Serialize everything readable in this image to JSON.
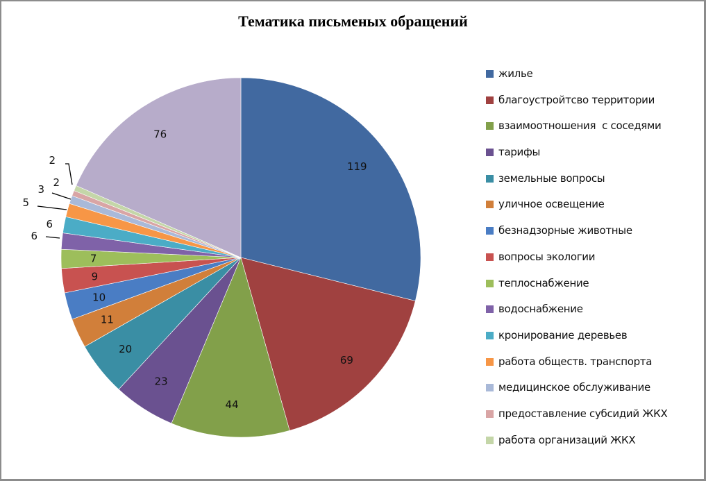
{
  "chart_data": {
    "type": "pie",
    "title": "Тематика письменых обращений",
    "xlabel": "",
    "ylabel": "",
    "legend_position": "right",
    "categories": [
      "жилье",
      "благоустройтсво территории",
      "взаимоотношения  с соседями",
      "тарифы",
      "земельные вопросы",
      "уличное освещение",
      "безнадзорные животные",
      "вопросы экологии",
      "теплоснабжение",
      "водоснабжение",
      "кронирование деревьев",
      "работа обществ. транспорта",
      "медицинское обслуживание",
      "предоставление субсидий ЖКХ",
      "работа организаций ЖКХ",
      ""
    ],
    "values": [
      119,
      69,
      44,
      23,
      20,
      11,
      10,
      9,
      7,
      6,
      6,
      5,
      3,
      2,
      2,
      76
    ],
    "colors": [
      "#4169A0",
      "#A04140",
      "#82A04A",
      "#6A5190",
      "#3A8EA4",
      "#D17F3A",
      "#4A7DC4",
      "#C85250",
      "#9DBE5B",
      "#7F62A8",
      "#4BACC6",
      "#F79646",
      "#A9B9D8",
      "#D9A5A5",
      "#C4D6A8",
      "#B7ACCA"
    ],
    "data_labels": [
      "119",
      "69",
      "44",
      "23",
      "20",
      "11",
      "10",
      "9",
      "7",
      "6",
      "6",
      "5",
      "3",
      "2",
      "2",
      "76"
    ],
    "start_angle_deg": 0,
    "direction": "clockwise"
  },
  "legend": {
    "items": [
      {
        "label": "жилье",
        "color": "#4169A0"
      },
      {
        "label": "благоустройтсво территории",
        "color": "#A04140"
      },
      {
        "label": "взаимоотношения  с соседями",
        "color": "#82A04A"
      },
      {
        "label": "тарифы",
        "color": "#6A5190"
      },
      {
        "label": "земельные вопросы",
        "color": "#3A8EA4"
      },
      {
        "label": "уличное освещение",
        "color": "#D17F3A"
      },
      {
        "label": "безнадзорные животные",
        "color": "#4A7DC4"
      },
      {
        "label": "вопросы экологии",
        "color": "#C85250"
      },
      {
        "label": "теплоснабжение",
        "color": "#9DBE5B"
      },
      {
        "label": "водоснабжение",
        "color": "#7F62A8"
      },
      {
        "label": "кронирование деревьев",
        "color": "#4BACC6"
      },
      {
        "label": "работа обществ. транспорта",
        "color": "#F79646"
      },
      {
        "label": "медицинское обслуживание",
        "color": "#A9B9D8"
      },
      {
        "label": "предоставление субсидий ЖКХ",
        "color": "#D9A5A5"
      },
      {
        "label": "работа организаций ЖКХ",
        "color": "#C4D6A8"
      }
    ]
  }
}
